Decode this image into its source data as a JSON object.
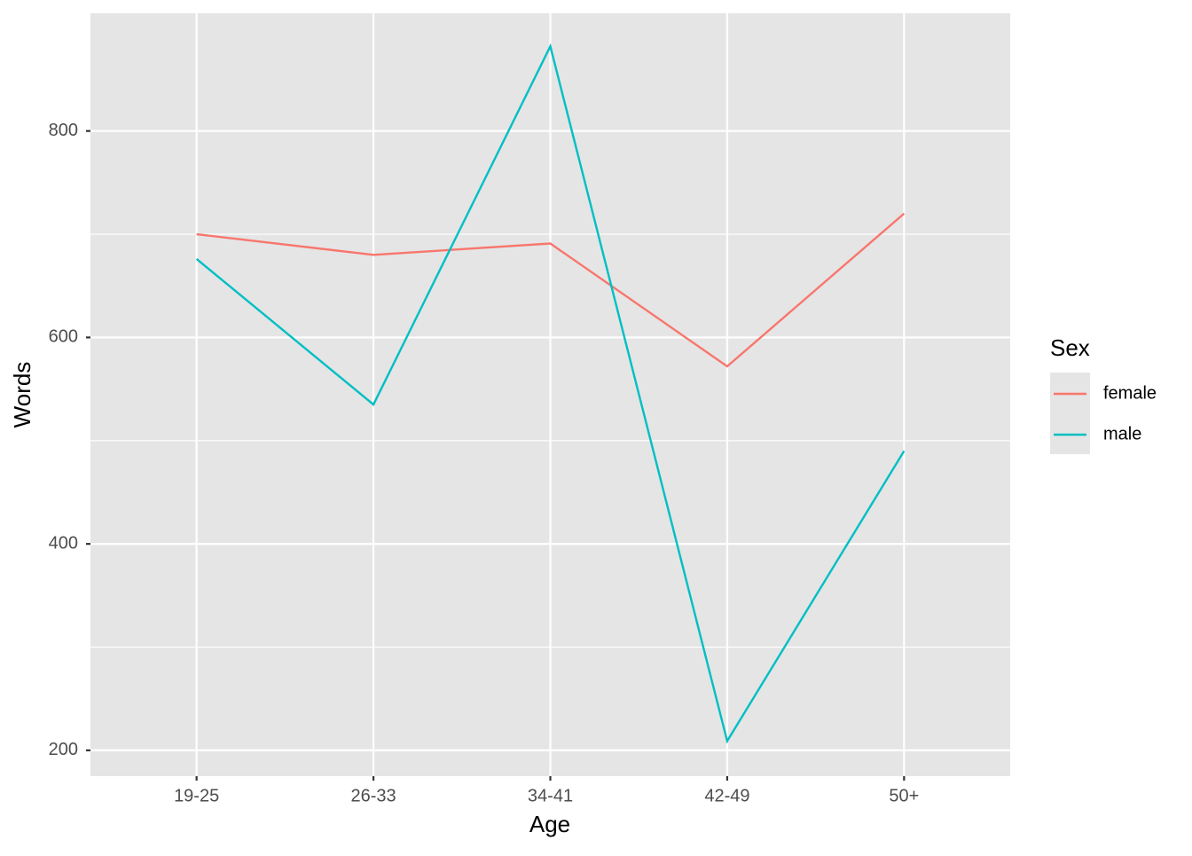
{
  "chart_data": {
    "type": "line",
    "x_label": "Age",
    "y_label": "Words",
    "categories": [
      "19-25",
      "26-33",
      "34-41",
      "42-49",
      "50+"
    ],
    "series": [
      {
        "name": "female",
        "color": "#f8766d",
        "values": [
          700,
          680,
          691,
          572,
          720
        ]
      },
      {
        "name": "male",
        "color": "#00bfc4",
        "values": [
          676,
          535,
          882,
          209,
          490
        ]
      }
    ],
    "ylim": [
      175,
      914
    ],
    "yticks": [
      200,
      400,
      600,
      800
    ],
    "y_minor_grid": [
      300,
      500,
      700
    ],
    "grid": true,
    "legend_title": "Sex",
    "legend_position": "right"
  }
}
